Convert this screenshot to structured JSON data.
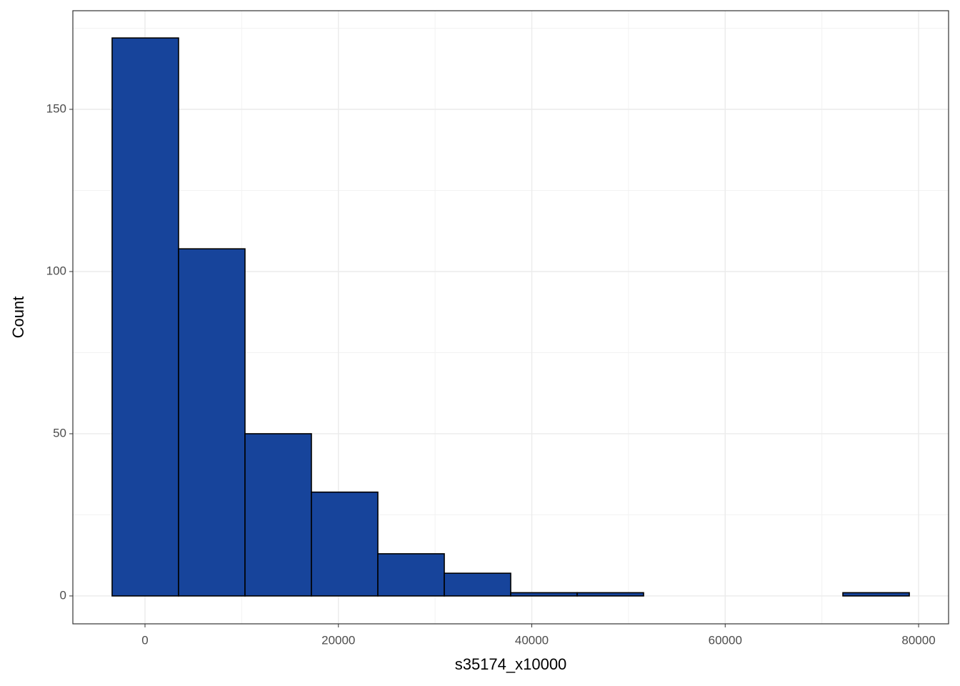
{
  "chart_data": {
    "type": "histogram",
    "x_label": "s35174_x10000",
    "y_label": "Count",
    "bins": [
      -3400,
      3470,
      10340,
      17210,
      24080,
      30950,
      37820,
      44690,
      51560,
      58430,
      65300,
      72170,
      79040
    ],
    "values": [
      172,
      107,
      50,
      32,
      13,
      7,
      1,
      1,
      0,
      0,
      0,
      1
    ],
    "color": "#17449b",
    "xlim": [
      -7460,
      83100
    ],
    "xticks": [
      0,
      20000,
      40000,
      60000,
      80000
    ],
    "xminor": [
      10000,
      30000,
      50000,
      70000
    ],
    "ylim": [
      -8.6,
      180.4
    ],
    "yticks": [
      0,
      50,
      100,
      150
    ],
    "yminor": [
      25,
      75,
      125,
      175
    ],
    "grid": true
  }
}
